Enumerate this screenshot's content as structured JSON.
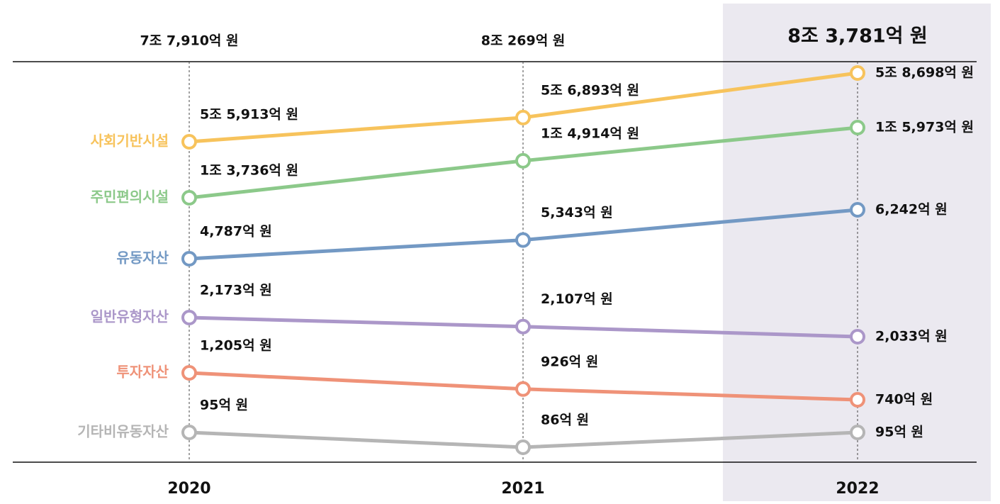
{
  "chart_data": {
    "type": "line",
    "categories": [
      "2020",
      "2021",
      "2022"
    ],
    "highlight_index": 2,
    "totals": {
      "values": [
        77910,
        80269,
        83781
      ],
      "value_labels": [
        "7조 7,910억 원",
        "8조 269억 원",
        "8조 3,781억 원"
      ]
    },
    "series": [
      {
        "name": "사회기반시설",
        "color": "#f7c35c",
        "values": [
          55913,
          56893,
          58698
        ],
        "value_labels": [
          "5조 5,913억 원",
          "5조 6,893억 원",
          "5조 8,698억 원"
        ]
      },
      {
        "name": "주민편의시설",
        "color": "#8cc98a",
        "values": [
          13736,
          14914,
          15973
        ],
        "value_labels": [
          "1조 3,736억 원",
          "1조 4,914억 원",
          "1조 5,973억 원"
        ]
      },
      {
        "name": "유동자산",
        "color": "#7399c4",
        "values": [
          4787,
          5343,
          6242
        ],
        "value_labels": [
          "4,787억 원",
          "5,343억 원",
          "6,242억 원"
        ]
      },
      {
        "name": "일반유형자산",
        "color": "#ab97c9",
        "values": [
          2173,
          2107,
          2033
        ],
        "value_labels": [
          "2,173억 원",
          "2,107억 원",
          "2,033억 원"
        ]
      },
      {
        "name": "투자자산",
        "color": "#ef9278",
        "values": [
          1205,
          926,
          740
        ],
        "value_labels": [
          "1,205억 원",
          "926억 원",
          "740억 원"
        ]
      },
      {
        "name": "기타비유동자산",
        "color": "#b5b5b5",
        "values": [
          95,
          86,
          95
        ],
        "value_labels": [
          "95억 원",
          "86억 원",
          "95억 원"
        ]
      }
    ]
  }
}
